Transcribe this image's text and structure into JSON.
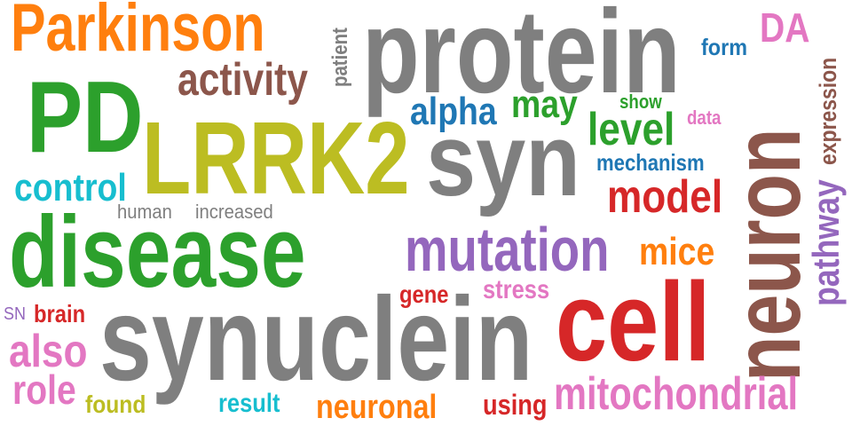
{
  "palette": {
    "orange": "#ff7f0e",
    "gray": "#7f7f7f",
    "green": "#2ca02c",
    "olive": "#bcbd22",
    "blue": "#1f77b4",
    "cyan": "#17becf",
    "red": "#d62728",
    "purple": "#9467bd",
    "pink": "#e377c2",
    "brown": "#8c564b"
  },
  "words": [
    {
      "text": "protein",
      "color": "#7f7f7f"
    },
    {
      "text": "synuclein",
      "color": "#7f7f7f"
    },
    {
      "text": "disease",
      "color": "#2ca02c"
    },
    {
      "text": "LRRK2",
      "color": "#bcbd22"
    },
    {
      "text": "PD",
      "color": "#2ca02c"
    },
    {
      "text": "syn",
      "color": "#7f7f7f"
    },
    {
      "text": "neuron",
      "color": "#8c564b"
    },
    {
      "text": "cell",
      "color": "#d62728"
    },
    {
      "text": "Parkinson",
      "color": "#ff7f0e"
    },
    {
      "text": "mutation",
      "color": "#9467bd"
    },
    {
      "text": "mitochondrial",
      "color": "#e377c2"
    },
    {
      "text": "activity",
      "color": "#8c564b"
    },
    {
      "text": "pathway",
      "color": "#9467bd"
    },
    {
      "text": "control",
      "color": "#17becf"
    },
    {
      "text": "level",
      "color": "#2ca02c"
    },
    {
      "text": "model",
      "color": "#d62728"
    },
    {
      "text": "alpha",
      "color": "#1f77b4"
    },
    {
      "text": "also",
      "color": "#e377c2"
    },
    {
      "text": "role",
      "color": "#e377c2"
    },
    {
      "text": "may",
      "color": "#2ca02c"
    },
    {
      "text": "DA",
      "color": "#e377c2"
    },
    {
      "text": "mice",
      "color": "#ff7f0e"
    },
    {
      "text": "expression",
      "color": "#8c564b"
    },
    {
      "text": "neuronal",
      "color": "#ff7f0e"
    },
    {
      "text": "mechanism",
      "color": "#1f77b4"
    },
    {
      "text": "patient",
      "color": "#7f7f7f"
    },
    {
      "text": "form",
      "color": "#1f77b4"
    },
    {
      "text": "stress",
      "color": "#e377c2"
    },
    {
      "text": "using",
      "color": "#d62728"
    },
    {
      "text": "result",
      "color": "#17becf"
    },
    {
      "text": "found",
      "color": "#bcbd22"
    },
    {
      "text": "brain",
      "color": "#d62728"
    },
    {
      "text": "gene",
      "color": "#d62728"
    },
    {
      "text": "show",
      "color": "#2ca02c"
    },
    {
      "text": "data",
      "color": "#e377c2"
    },
    {
      "text": "human",
      "color": "#7f7f7f"
    },
    {
      "text": "increased",
      "color": "#7f7f7f"
    },
    {
      "text": "SN",
      "color": "#9467bd"
    }
  ]
}
